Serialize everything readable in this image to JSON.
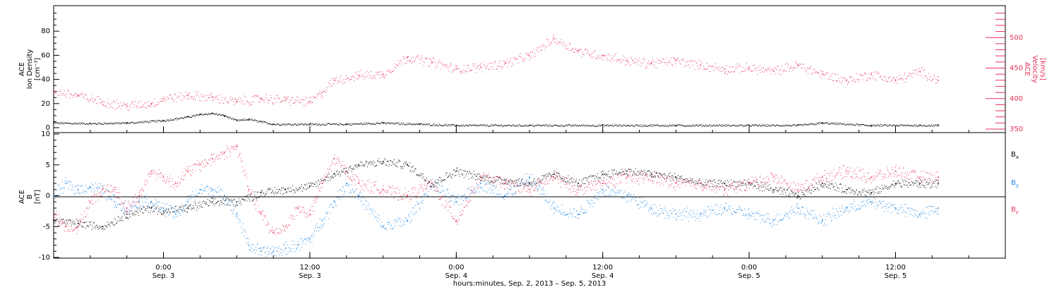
{
  "chart_data": [
    {
      "type": "scatter",
      "panel": "top",
      "ylabel_left": [
        "ACE",
        "Ion Density",
        "[cm⁻³]"
      ],
      "ylabel_right": [
        "ACE",
        "Velocity",
        "[km/s]"
      ],
      "ylim_left": [
        0,
        100
      ],
      "ylim_right": [
        350,
        550
      ],
      "yticks_left": [
        0,
        20,
        40,
        60,
        80
      ],
      "yticks_right": [
        350,
        400,
        450,
        500
      ],
      "x_range_hours": [
        -9,
        69
      ],
      "series": [
        {
          "axis": "left",
          "color": "#000000",
          "x": [
            -9,
            -6,
            -3,
            0,
            2,
            3,
            4,
            5,
            6,
            7,
            8,
            9,
            12,
            15,
            18,
            21,
            24,
            30,
            36,
            42,
            48,
            52,
            54,
            58,
            62,
            63.5
          ],
          "y": [
            4,
            3.5,
            4,
            6,
            9,
            11,
            12,
            10,
            6,
            7,
            5,
            3,
            3,
            3,
            4,
            3,
            2,
            2,
            2,
            2,
            2,
            2,
            4,
            2,
            2,
            2
          ]
        },
        {
          "axis": "right",
          "color": "#e8325a",
          "x": [
            -9,
            -7,
            -5,
            -3,
            -1,
            0,
            2,
            4,
            6,
            8,
            10,
            12,
            13,
            14,
            16,
            18,
            20,
            22,
            24,
            26,
            28,
            30,
            32,
            34,
            36,
            38,
            40,
            42,
            44,
            46,
            48,
            50,
            52,
            54,
            56,
            58,
            60,
            62,
            63.5
          ],
          "y": [
            412,
            405,
            395,
            388,
            392,
            400,
            405,
            402,
            395,
            400,
            398,
            395,
            410,
            430,
            438,
            440,
            468,
            460,
            448,
            452,
            458,
            470,
            498,
            478,
            470,
            462,
            458,
            462,
            455,
            448,
            450,
            445,
            455,
            440,
            430,
            440,
            430,
            445,
            430
          ]
        }
      ]
    },
    {
      "type": "scatter",
      "panel": "bottom",
      "ylabel_left": [
        "ACE",
        "B",
        "[nT]"
      ],
      "ylim": [
        -10,
        10
      ],
      "yticks": [
        -10,
        -5,
        0,
        5,
        10
      ],
      "x_range_hours": [
        -9,
        69
      ],
      "xtick_hours": [
        0,
        12,
        24,
        36,
        48,
        60
      ],
      "xtick_labels": [
        {
          "time": "0:00",
          "date": "Sep. 3"
        },
        {
          "time": "12:00",
          "date": "Sep. 3"
        },
        {
          "time": "0:00",
          "date": "Sep. 4"
        },
        {
          "time": "12:00",
          "date": "Sep. 4"
        },
        {
          "time": "0:00",
          "date": "Sep. 5"
        },
        {
          "time": "12:00",
          "date": "Sep. 5"
        }
      ],
      "xlabel": "hours:minutes, Sep.  2, 2013 – Sep.  5, 2013",
      "series": [
        {
          "name": "Bx",
          "color": "#000000",
          "x": [
            -9,
            -7,
            -5,
            -3,
            -1,
            0,
            2,
            4,
            6,
            8,
            10,
            12,
            14,
            16,
            18,
            20,
            22,
            24,
            26,
            28,
            30,
            32,
            34,
            36,
            38,
            40,
            42,
            44,
            46,
            48,
            50,
            52,
            54,
            56,
            58,
            60,
            62,
            63.5
          ],
          "y": [
            -4,
            -4.5,
            -5,
            -3,
            -2,
            -2.5,
            -2,
            -1,
            -1,
            0.5,
            1,
            1.5,
            3.5,
            5,
            5.5,
            5,
            2,
            4,
            3,
            2.5,
            2,
            3.5,
            2,
            3.5,
            4,
            3.5,
            3,
            2,
            2,
            2,
            1,
            0,
            2,
            1,
            0.5,
            2,
            2,
            2
          ]
        },
        {
          "name": "By",
          "color": "#1e88e5",
          "x": [
            -9,
            -8,
            -7,
            -6,
            -5,
            -4,
            -3,
            -2,
            -1,
            0,
            1,
            2,
            3,
            4,
            5,
            6,
            7,
            8,
            9,
            10,
            11,
            12,
            13,
            14,
            15,
            16,
            18,
            20,
            22,
            24,
            26,
            28,
            30,
            32,
            34,
            36,
            38,
            40,
            42,
            44,
            46,
            48,
            50,
            52,
            54,
            56,
            58,
            60,
            62,
            63.5
          ],
          "y": [
            0,
            2,
            1,
            1.5,
            1,
            -1,
            -2,
            -1,
            -1,
            -2,
            -3,
            -1,
            1,
            1,
            0,
            -3,
            -8,
            -9,
            -9,
            -8.5,
            -8,
            -7,
            -4,
            -1,
            2,
            0,
            -5,
            -4,
            2,
            -1,
            2,
            0,
            3,
            -2,
            -3,
            1,
            0,
            -2,
            -3,
            -3,
            -2,
            -3,
            -4,
            -2,
            -4,
            -2,
            -1,
            -2,
            -3,
            -2
          ]
        },
        {
          "name": "Bz",
          "color": "#e8325a",
          "x": [
            -9,
            -8,
            -7,
            -6,
            -5,
            -4,
            -3,
            -2,
            -1,
            0,
            1,
            2,
            3,
            4,
            5,
            6,
            7,
            8,
            9,
            10,
            11,
            12,
            13,
            14,
            15,
            16,
            18,
            20,
            22,
            24,
            26,
            28,
            30,
            32,
            34,
            36,
            38,
            40,
            42,
            44,
            46,
            48,
            50,
            52,
            54,
            56,
            58,
            60,
            62,
            63.5
          ],
          "y": [
            -3,
            -5,
            -5,
            -1,
            1,
            1,
            -2,
            0,
            4,
            3,
            2,
            4,
            5,
            6,
            7,
            8,
            1,
            -3,
            -6,
            -5,
            -2,
            -3,
            2,
            6,
            4,
            2,
            1,
            0,
            2,
            -4,
            3,
            2,
            1,
            3,
            1,
            2,
            3,
            3,
            2,
            2,
            1,
            2,
            3,
            1,
            3,
            4,
            3,
            4,
            3,
            3
          ]
        }
      ]
    }
  ],
  "legend": {
    "bx": {
      "label": "B",
      "sub": "x",
      "color": "#000000"
    },
    "by": {
      "label": "B",
      "sub": "y",
      "color": "#1e88e5"
    },
    "bz": {
      "label": "B",
      "sub": "z",
      "color": "#e8325a"
    }
  }
}
